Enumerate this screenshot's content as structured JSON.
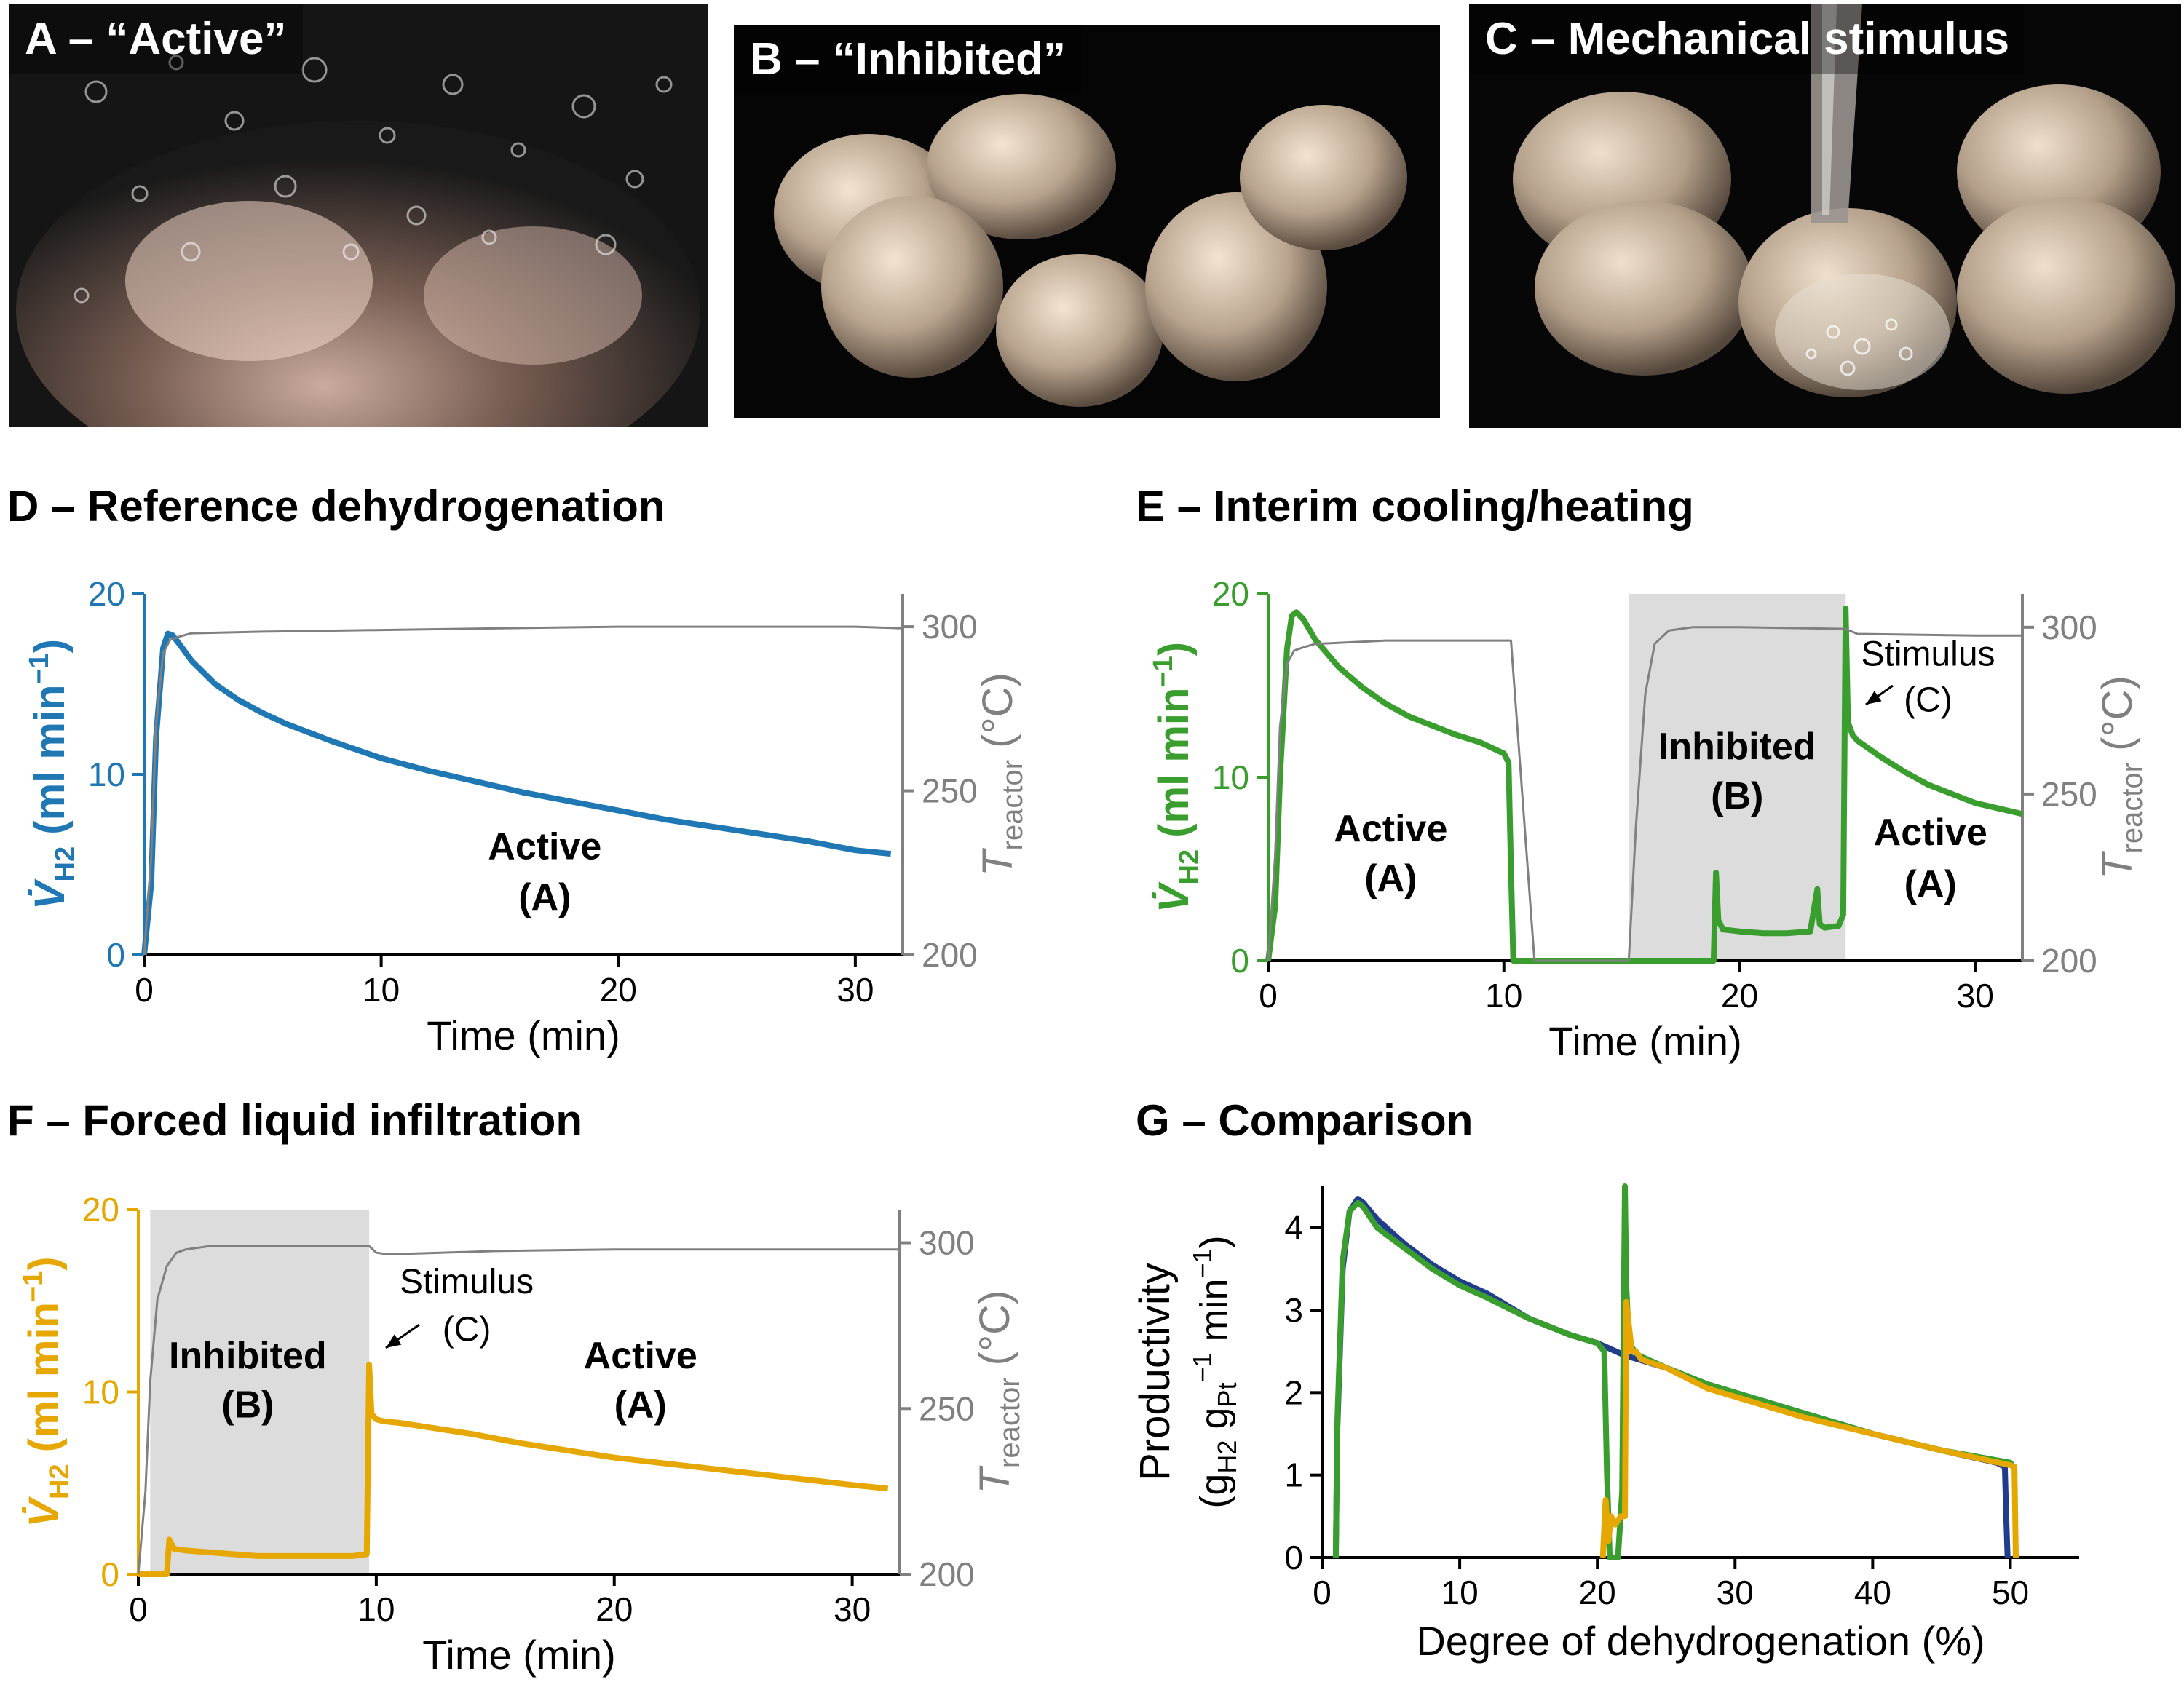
{
  "photos": [
    {
      "letter": "A",
      "label": "A – “Active”"
    },
    {
      "letter": "B",
      "label": "B – “Inhibited”"
    },
    {
      "letter": "C",
      "label": "C – Mechanical stimulus"
    }
  ],
  "colors": {
    "blue": "#1f77b4",
    "green": "#3a9e2f",
    "orange": "#e6a700",
    "gray": "#808080",
    "navy": "#1f3d8c",
    "shade": "#dcdcdc"
  },
  "chart_data": [
    {
      "id": "D",
      "type": "line",
      "title": "D – Reference dehydrogenation",
      "xlabel": "Time (min)",
      "ylabel_left": "V̇H2 (ml min⁻¹)",
      "ylabel_right": "Treactor (°C)",
      "xlim": [
        0,
        32
      ],
      "ylim_left": [
        0,
        20
      ],
      "ylim_right": [
        200,
        310
      ],
      "xticks": [
        0,
        10,
        20,
        30
      ],
      "yticks_left": [
        0,
        10,
        20
      ],
      "yticks_right": [
        200,
        250,
        300
      ],
      "series": [
        {
          "name": "V̇H2",
          "axis": "left",
          "color": "#1f77b4",
          "x": [
            0,
            0.3,
            0.5,
            0.8,
            1.0,
            1.2,
            1.5,
            2,
            3,
            4,
            5,
            6,
            7,
            8,
            10,
            12,
            14,
            16,
            18,
            20,
            22,
            24,
            26,
            28,
            30,
            31.5
          ],
          "y": [
            0,
            4,
            12,
            17,
            17.8,
            17.7,
            17.2,
            16.3,
            15.0,
            14.1,
            13.4,
            12.8,
            12.3,
            11.8,
            10.9,
            10.2,
            9.6,
            9.0,
            8.5,
            8.0,
            7.5,
            7.1,
            6.7,
            6.3,
            5.8,
            5.6
          ]
        },
        {
          "name": "Treactor",
          "axis": "right",
          "color": "#808080",
          "x": [
            0,
            0.3,
            0.5,
            0.8,
            1.1,
            1.5,
            2,
            5,
            10,
            15,
            20,
            25,
            30,
            32
          ],
          "y": [
            200,
            230,
            270,
            292,
            296,
            297,
            298,
            298.5,
            299,
            299.5,
            300,
            300,
            300,
            299.5
          ]
        }
      ],
      "annotations": [
        {
          "text": "Active",
          "x": 16.9,
          "y": 5.3
        },
        {
          "text": "(A)",
          "x": 16.9,
          "y": 2.5
        }
      ]
    },
    {
      "id": "E",
      "type": "line",
      "title": "E – Interim cooling/heating",
      "xlabel": "Time (min)",
      "ylabel_left": "V̇H2 (ml min⁻¹)",
      "ylabel_right": "Treactor (°C)",
      "xlim": [
        0,
        32
      ],
      "ylim_left": [
        0,
        20
      ],
      "ylim_right": [
        200,
        310
      ],
      "xticks": [
        0,
        10,
        20,
        30
      ],
      "yticks_left": [
        0,
        10,
        20
      ],
      "yticks_right": [
        200,
        250,
        300
      ],
      "shaded": [
        [
          15.3,
          24.5
        ]
      ],
      "series": [
        {
          "name": "V̇H2",
          "axis": "left",
          "color": "#3a9e2f",
          "x": [
            0,
            0.3,
            0.5,
            0.8,
            1.0,
            1.2,
            1.5,
            2,
            3,
            4,
            5,
            6,
            7,
            8,
            9,
            10,
            10.2,
            10.3,
            10.4,
            15,
            18.9,
            19.0,
            19.1,
            19.3,
            20,
            21,
            22,
            23,
            23.3,
            23.4,
            23.6,
            24.2,
            24.4,
            24.5,
            24.6,
            24.8,
            25,
            26,
            27,
            28,
            29,
            30,
            31,
            32
          ],
          "y": [
            0,
            3,
            10,
            17,
            18.8,
            19.0,
            18.6,
            17.5,
            16.0,
            14.9,
            14.0,
            13.3,
            12.8,
            12.3,
            11.9,
            11.3,
            10.8,
            5,
            0,
            0,
            0,
            4.8,
            2.2,
            1.7,
            1.6,
            1.5,
            1.5,
            1.6,
            3.9,
            2.0,
            1.8,
            1.9,
            2.5,
            19.2,
            13,
            12.3,
            12.0,
            11.1,
            10.3,
            9.6,
            9.1,
            8.6,
            8.3,
            8.0
          ]
        },
        {
          "name": "Treactor",
          "axis": "right",
          "color": "#808080",
          "x": [
            0,
            0.3,
            0.5,
            0.8,
            1.1,
            1.5,
            2,
            5,
            10,
            10.3,
            11.3,
            15.3,
            15.6,
            16.0,
            16.4,
            17,
            18,
            20,
            24.5,
            25,
            30,
            32
          ],
          "y": [
            200,
            232,
            270,
            289,
            293,
            294,
            295,
            296,
            296,
            296,
            200,
            200,
            240,
            280,
            295,
            299,
            300,
            300,
            299.5,
            298,
            297.5,
            297.5
          ]
        }
      ],
      "annotations": [
        {
          "text": "Active",
          "x": 5.2,
          "y": 6.5
        },
        {
          "text": "(A)",
          "x": 5.2,
          "y": 3.8
        },
        {
          "text": "Inhibited",
          "x": 19.9,
          "y": 11.0
        },
        {
          "text": "(B)",
          "x": 19.9,
          "y": 8.3
        },
        {
          "text": "Active",
          "x": 28.1,
          "y": 6.3
        },
        {
          "text": "(A)",
          "x": 28.1,
          "y": 3.5
        },
        {
          "text": "Stimulus",
          "x": 28.0,
          "y": 16.1
        },
        {
          "text": "(C)",
          "x": 28.0,
          "y": 13.6
        }
      ]
    },
    {
      "id": "F",
      "type": "line",
      "title": "F – Forced liquid infiltration",
      "xlabel": "Time (min)",
      "ylabel_left": "V̇H2 (ml min⁻¹)",
      "ylabel_right": "Treactor (°C)",
      "xlim": [
        0,
        32
      ],
      "ylim_left": [
        0,
        20
      ],
      "ylim_right": [
        200,
        310
      ],
      "xticks": [
        0,
        10,
        20,
        30
      ],
      "yticks_left": [
        0,
        10,
        20
      ],
      "yticks_right": [
        200,
        250,
        300
      ],
      "shaded": [
        [
          0.5,
          9.7
        ]
      ],
      "series": [
        {
          "name": "V̇H2",
          "axis": "left",
          "color": "#e6a700",
          "x": [
            0,
            1.2,
            1.3,
            1.5,
            2,
            3,
            4,
            5,
            6,
            7,
            8,
            9,
            9.6,
            9.7,
            9.8,
            10.0,
            10.3,
            11,
            12,
            14,
            16,
            18,
            20,
            22,
            24,
            26,
            28,
            30,
            31.5
          ],
          "y": [
            0,
            0,
            1.9,
            1.4,
            1.3,
            1.2,
            1.1,
            1.0,
            1.0,
            1.0,
            1.0,
            1.0,
            1.1,
            11.5,
            8.8,
            8.5,
            8.4,
            8.3,
            8.1,
            7.7,
            7.2,
            6.8,
            6.4,
            6.1,
            5.8,
            5.5,
            5.2,
            4.9,
            4.7
          ]
        },
        {
          "name": "Treactor",
          "axis": "right",
          "color": "#808080",
          "x": [
            0,
            0.3,
            0.5,
            0.8,
            1.2,
            1.6,
            2,
            3,
            5,
            9.7,
            10.0,
            10.5,
            15,
            20,
            25,
            30,
            32
          ],
          "y": [
            200,
            225,
            258,
            283,
            293,
            297,
            298,
            299,
            299,
            299,
            297,
            296.5,
            297.5,
            298,
            298,
            298,
            298
          ]
        }
      ],
      "annotations": [
        {
          "text": "Inhibited",
          "x": 4.6,
          "y": 11.3
        },
        {
          "text": "(B)",
          "x": 4.6,
          "y": 8.6
        },
        {
          "text": "Active",
          "x": 21.1,
          "y": 11.3
        },
        {
          "text": "(A)",
          "x": 21.1,
          "y": 8.6
        },
        {
          "text": "Stimulus",
          "x": 13.8,
          "y": 15.4
        },
        {
          "text": "(C)",
          "x": 13.8,
          "y": 12.8
        }
      ]
    },
    {
      "id": "G",
      "type": "line",
      "title": "G – Comparison",
      "xlabel": "Degree of dehydrogenation (%)",
      "ylabel_line1": "Productivity",
      "ylabel_line2": "(gH2 gPt⁻¹ min⁻¹)",
      "xlim": [
        0,
        55
      ],
      "ylim": [
        0,
        4.5
      ],
      "xticks": [
        0,
        10,
        20,
        30,
        40,
        50
      ],
      "yticks": [
        0,
        1,
        2,
        3,
        4
      ],
      "series": [
        {
          "color": "#1f3d8c",
          "x": [
            1,
            1.1,
            1.5,
            2,
            2.6,
            3,
            4,
            6,
            8,
            10,
            12,
            15,
            18,
            20,
            22,
            25,
            28,
            30,
            35,
            40,
            45,
            49,
            49.6,
            49.7,
            49.8
          ],
          "y": [
            0,
            1.5,
            3.5,
            4.2,
            4.35,
            4.3,
            4.1,
            3.8,
            3.55,
            3.35,
            3.2,
            2.9,
            2.7,
            2.6,
            2.45,
            2.3,
            2.1,
            2.0,
            1.75,
            1.5,
            1.3,
            1.15,
            1.1,
            0.5,
            0
          ]
        },
        {
          "color": "#3a9e2f",
          "x": [
            1,
            1.1,
            1.5,
            2,
            2.6,
            3,
            4,
            6,
            8,
            10,
            12,
            15,
            18,
            20,
            20.5,
            20.7,
            20.9,
            21.5,
            21.8,
            22.0,
            22.1,
            22.3,
            22.5,
            22.7,
            23,
            25,
            28,
            30,
            35,
            40,
            45,
            50,
            50.2
          ],
          "y": [
            0,
            1.6,
            3.6,
            4.2,
            4.3,
            4.25,
            4.0,
            3.75,
            3.5,
            3.3,
            3.15,
            2.9,
            2.7,
            2.6,
            2.5,
            1.0,
            0,
            0,
            0.8,
            4.5,
            3.3,
            2.6,
            2.55,
            2.5,
            2.45,
            2.3,
            2.1,
            2.0,
            1.75,
            1.5,
            1.3,
            1.15,
            1.1
          ]
        },
        {
          "color": "#e6a700",
          "x": [
            20.4,
            20.6,
            20.8,
            21.0,
            21.3,
            21.7,
            22.0,
            22.1,
            22.3,
            22.5,
            22.8,
            23.2,
            25,
            28,
            30,
            35,
            40,
            45,
            50,
            50.3,
            50.4
          ],
          "y": [
            0,
            0.7,
            0.2,
            0.5,
            0.4,
            0.5,
            0.5,
            3.1,
            2.8,
            2.5,
            2.5,
            2.4,
            2.3,
            2.05,
            1.95,
            1.7,
            1.5,
            1.3,
            1.12,
            1.1,
            0
          ]
        }
      ]
    }
  ]
}
